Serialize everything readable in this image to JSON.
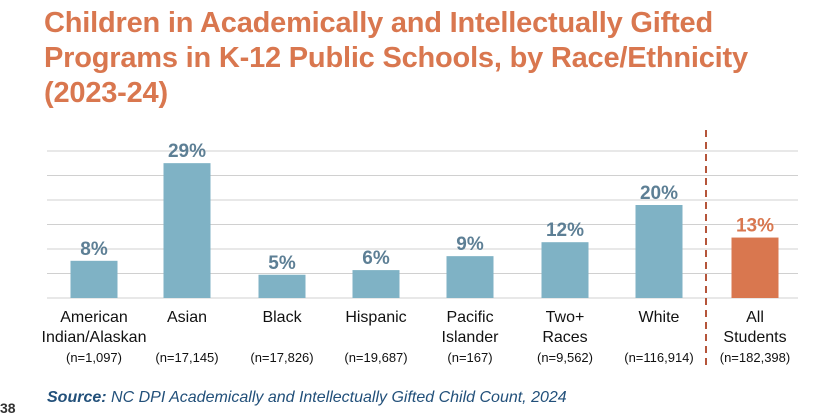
{
  "chart_data": {
    "type": "bar",
    "title_lines": [
      "Children in Academically and Intellectually Gifted",
      "Programs in K-12 Public Schools, by Race/Ethnicity",
      "(2023-24)"
    ],
    "categories": [
      {
        "label_lines": [
          "American",
          "Indian/Alaskan"
        ],
        "n": "(n=1,097)",
        "value": 8,
        "value_label": "8%"
      },
      {
        "label_lines": [
          "Asian"
        ],
        "n": "(n=17,145)",
        "value": 29,
        "value_label": "29%"
      },
      {
        "label_lines": [
          "Black"
        ],
        "n": "(n=17,826)",
        "value": 5,
        "value_label": "5%"
      },
      {
        "label_lines": [
          "Hispanic"
        ],
        "n": "(n=19,687)",
        "value": 6,
        "value_label": "6%"
      },
      {
        "label_lines": [
          "Pacific",
          "Islander"
        ],
        "n": "(n=167)",
        "value": 9,
        "value_label": "9%"
      },
      {
        "label_lines": [
          "Two+",
          "Races"
        ],
        "n": "(n=9,562)",
        "value": 12,
        "value_label": "12%"
      },
      {
        "label_lines": [
          "White"
        ],
        "n": "(n=116,914)",
        "value": 20,
        "value_label": "20%"
      },
      {
        "label_lines": [
          "All",
          "Students"
        ],
        "n": "(n=182,398)",
        "value": 13,
        "value_label": "13%",
        "highlight": true
      }
    ],
    "ylim": [
      0,
      35
    ],
    "gridlines": true,
    "xlabel": "",
    "ylabel": ""
  },
  "colors": {
    "title": "#d9774f",
    "bar": "#7fb2c5",
    "highlight_bar": "#d9774f",
    "value_label": "#5d7f95",
    "highlight_label": "#d9774f",
    "grid": "#d0d0d0",
    "divider": "#b5553a",
    "source": "#22507a"
  },
  "source": {
    "label": "Source:",
    "text": "NC DPI Academically and Intellectually Gifted Child Count, 2024"
  },
  "page_number": "38"
}
